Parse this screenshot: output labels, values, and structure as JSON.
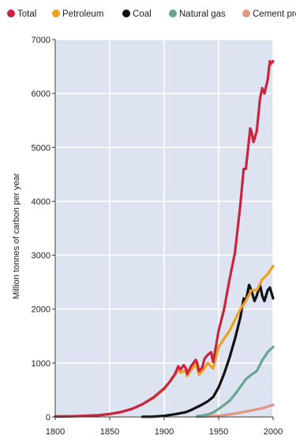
{
  "chart_data": {
    "type": "line",
    "title": "",
    "xlabel": "",
    "ylabel": "Million tonnes of carbon per year",
    "xlim": [
      1800,
      2000
    ],
    "ylim": [
      0,
      7000
    ],
    "x_ticks": [
      "1800",
      "1850",
      "1900",
      "1950",
      "2000"
    ],
    "y_ticks": [
      "0",
      "1000",
      "2000",
      "3000",
      "4000",
      "5000",
      "6000",
      "7000"
    ],
    "grid": true,
    "legend_position": "top",
    "colors": {
      "plot_background": "#dde3f1",
      "grid": "#ffffff",
      "axis": "#333333"
    },
    "series": [
      {
        "name": "Total",
        "color": "#c8253f",
        "points": [
          [
            1800,
            8
          ],
          [
            1820,
            14
          ],
          [
            1840,
            33
          ],
          [
            1850,
            54
          ],
          [
            1860,
            90
          ],
          [
            1870,
            146
          ],
          [
            1880,
            235
          ],
          [
            1890,
            360
          ],
          [
            1900,
            530
          ],
          [
            1905,
            650
          ],
          [
            1910,
            800
          ],
          [
            1913,
            940
          ],
          [
            1915,
            880
          ],
          [
            1918,
            960
          ],
          [
            1920,
            900
          ],
          [
            1921,
            800
          ],
          [
            1925,
            950
          ],
          [
            1929,
            1060
          ],
          [
            1930,
            1020
          ],
          [
            1932,
            850
          ],
          [
            1935,
            920
          ],
          [
            1937,
            1080
          ],
          [
            1940,
            1150
          ],
          [
            1943,
            1200
          ],
          [
            1945,
            1020
          ],
          [
            1950,
            1600
          ],
          [
            1955,
            2000
          ],
          [
            1960,
            2550
          ],
          [
            1965,
            3050
          ],
          [
            1970,
            3950
          ],
          [
            1973,
            4600
          ],
          [
            1975,
            4600
          ],
          [
            1979,
            5350
          ],
          [
            1980,
            5300
          ],
          [
            1982,
            5100
          ],
          [
            1985,
            5300
          ],
          [
            1988,
            5900
          ],
          [
            1990,
            6100
          ],
          [
            1992,
            6000
          ],
          [
            1995,
            6250
          ],
          [
            1997,
            6600
          ],
          [
            1998,
            6550
          ],
          [
            2000,
            6600
          ]
        ]
      },
      {
        "name": "Petroleum",
        "color": "#f0a020",
        "points": [
          [
            1800,
            8
          ],
          [
            1820,
            14
          ],
          [
            1840,
            33
          ],
          [
            1850,
            54
          ],
          [
            1860,
            90
          ],
          [
            1870,
            146
          ],
          [
            1880,
            235
          ],
          [
            1890,
            350
          ],
          [
            1900,
            520
          ],
          [
            1910,
            780
          ],
          [
            1913,
            900
          ],
          [
            1915,
            820
          ],
          [
            1920,
            870
          ],
          [
            1921,
            760
          ],
          [
            1925,
            880
          ],
          [
            1929,
            980
          ],
          [
            1930,
            930
          ],
          [
            1932,
            780
          ],
          [
            1935,
            850
          ],
          [
            1940,
            1000
          ],
          [
            1945,
            900
          ],
          [
            1950,
            1300
          ],
          [
            1955,
            1450
          ],
          [
            1960,
            1600
          ],
          [
            1965,
            1800
          ],
          [
            1970,
            2000
          ],
          [
            1975,
            2150
          ],
          [
            1980,
            2350
          ],
          [
            1985,
            2350
          ],
          [
            1990,
            2550
          ],
          [
            1995,
            2650
          ],
          [
            2000,
            2800
          ]
        ]
      },
      {
        "name": "Coal",
        "color": "#111111",
        "points": [
          [
            1880,
            3
          ],
          [
            1890,
            6
          ],
          [
            1900,
            20
          ],
          [
            1910,
            50
          ],
          [
            1920,
            90
          ],
          [
            1925,
            130
          ],
          [
            1930,
            180
          ],
          [
            1935,
            230
          ],
          [
            1940,
            290
          ],
          [
            1945,
            370
          ],
          [
            1950,
            550
          ],
          [
            1955,
            800
          ],
          [
            1960,
            1100
          ],
          [
            1965,
            1450
          ],
          [
            1970,
            1850
          ],
          [
            1973,
            2200
          ],
          [
            1975,
            2150
          ],
          [
            1978,
            2450
          ],
          [
            1980,
            2350
          ],
          [
            1983,
            2150
          ],
          [
            1985,
            2250
          ],
          [
            1988,
            2450
          ],
          [
            1990,
            2250
          ],
          [
            1992,
            2150
          ],
          [
            1995,
            2350
          ],
          [
            1997,
            2400
          ],
          [
            2000,
            2200
          ]
        ]
      },
      {
        "name": "Natural gas",
        "color": "#6aa593",
        "points": [
          [
            1930,
            15
          ],
          [
            1935,
            25
          ],
          [
            1940,
            45
          ],
          [
            1945,
            80
          ],
          [
            1950,
            150
          ],
          [
            1955,
            220
          ],
          [
            1960,
            300
          ],
          [
            1965,
            420
          ],
          [
            1970,
            560
          ],
          [
            1975,
            700
          ],
          [
            1980,
            780
          ],
          [
            1985,
            850
          ],
          [
            1990,
            1050
          ],
          [
            1995,
            1200
          ],
          [
            2000,
            1300
          ]
        ]
      },
      {
        "name": "Cement production",
        "color": "#e29580",
        "points": [
          [
            1930,
            5
          ],
          [
            1940,
            10
          ],
          [
            1950,
            20
          ],
          [
            1960,
            45
          ],
          [
            1970,
            80
          ],
          [
            1980,
            120
          ],
          [
            1990,
            160
          ],
          [
            2000,
            225
          ]
        ]
      }
    ]
  }
}
